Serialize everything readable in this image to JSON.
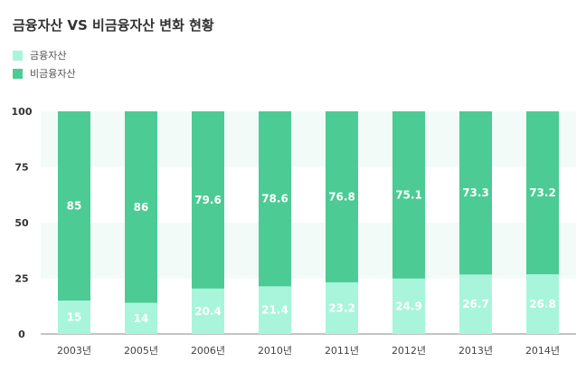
{
  "chart_data": {
    "type": "bar",
    "stacked": true,
    "title": "금융자산 VS 비금융자산 변화 현황",
    "categories": [
      "2003년",
      "2005년",
      "2006년",
      "2010년",
      "2011년",
      "2012년",
      "2013년",
      "2014년"
    ],
    "series": [
      {
        "name": "금융자산",
        "color": "#a8f5dc",
        "values": [
          15,
          14,
          20.4,
          21.4,
          23.2,
          24.9,
          26.7,
          26.8
        ]
      },
      {
        "name": "비금융자산",
        "color": "#4ccb94",
        "values": [
          85,
          86,
          79.6,
          78.6,
          76.8,
          75.1,
          73.3,
          73.2
        ]
      }
    ],
    "yticks": [
      "100",
      "75",
      "50",
      "25",
      "0"
    ],
    "ytick_values": [
      100,
      75,
      50,
      25,
      0
    ],
    "ylim": [
      0,
      100
    ],
    "band_color": "#f2fbf7",
    "legend_position": "top-left"
  }
}
